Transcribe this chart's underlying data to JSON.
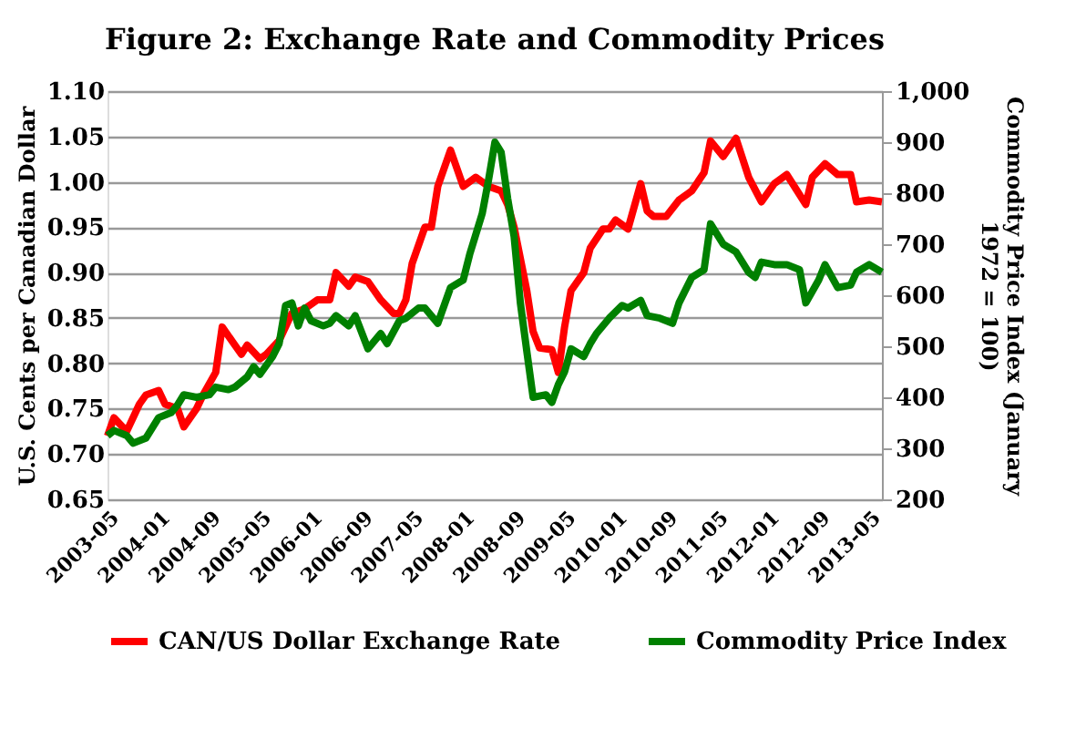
{
  "chart_data": {
    "type": "line",
    "title": "Figure 2: Exchange Rate and Commodity Prices",
    "ylabel": "U.S. Cents per Canadian Dollar",
    "y2label": "Commodity Price Index (January 1972 = 100)",
    "xlim": [
      "2003-05",
      "2013-07"
    ],
    "xticks": [
      "2003-05",
      "2004-01",
      "2004-09",
      "2005-05",
      "2006-01",
      "2006-09",
      "2007-05",
      "2008-01",
      "2008-09",
      "2009-05",
      "2010-01",
      "2010-09",
      "2011-05",
      "2012-01",
      "2012-09",
      "2013-05"
    ],
    "ylim": [
      0.65,
      1.1
    ],
    "yticks": [
      0.65,
      {
        "value": 0.7,
        "label": "0.70"
      },
      0.75,
      {
        "value": 0.8,
        "label": "0.80"
      },
      0.85,
      {
        "value": 0.9,
        "label": "0.90"
      },
      0.95,
      {
        "value": 1,
        "label": "1.00"
      },
      1.05,
      {
        "value": 1.1,
        "label": "1.10"
      }
    ],
    "y2lim": [
      200,
      1000
    ],
    "y2ticks": [
      200,
      300,
      400,
      500,
      600,
      700,
      800,
      900,
      {
        "value": 1000,
        "label": "1,000"
      }
    ],
    "grid": "y",
    "legend": "bottom",
    "line_style": "solid",
    "marker": "none",
    "series": [
      {
        "name": "CAN/US Dollar Exchange Rate",
        "color": "#ff0000",
        "x": [
          "2003-05",
          "2003-06",
          "2003-08",
          "2003-10",
          "2003-11",
          "2004-01",
          "2004-02",
          "2004-04",
          "2004-05",
          "2004-07",
          "2004-08",
          "2004-10",
          "2004-11",
          "2005-01",
          "2005-02",
          "2005-03",
          "2005-05",
          "2005-06",
          "2005-08",
          "2005-10",
          "2005-12",
          "2006-02",
          "2006-04",
          "2006-05",
          "2006-07",
          "2006-08",
          "2006-10",
          "2006-12",
          "2007-02",
          "2007-03",
          "2007-04",
          "2007-05",
          "2007-07",
          "2007-08",
          "2007-09",
          "2007-11",
          "2008-01",
          "2008-03",
          "2008-05",
          "2008-07",
          "2008-08",
          "2008-09",
          "2008-11",
          "2008-12",
          "2009-01",
          "2009-03",
          "2009-04",
          "2009-05",
          "2009-06",
          "2009-08",
          "2009-09",
          "2009-11",
          "2009-12",
          "2010-01",
          "2010-03",
          "2010-05",
          "2010-06",
          "2010-07",
          "2010-09",
          "2010-11",
          "2011-01",
          "2011-03",
          "2011-04",
          "2011-06",
          "2011-08",
          "2011-10",
          "2011-12",
          "2012-02",
          "2012-04",
          "2012-07",
          "2012-08",
          "2012-10",
          "2012-12",
          "2013-02",
          "2013-03",
          "2013-05",
          "2013-07"
        ],
        "values": [
          0.72,
          0.74,
          0.725,
          0.755,
          0.765,
          0.77,
          0.755,
          0.75,
          0.73,
          0.75,
          0.765,
          0.79,
          0.84,
          0.82,
          0.81,
          0.82,
          0.805,
          0.81,
          0.825,
          0.855,
          0.86,
          0.87,
          0.87,
          0.9,
          0.885,
          0.895,
          0.89,
          0.87,
          0.855,
          0.855,
          0.87,
          0.91,
          0.95,
          0.95,
          0.995,
          1.035,
          0.995,
          1.005,
          0.995,
          0.99,
          0.975,
          0.95,
          0.88,
          0.835,
          0.817,
          0.815,
          0.79,
          0.84,
          0.88,
          0.9,
          0.927,
          0.948,
          0.948,
          0.958,
          0.948,
          0.998,
          0.968,
          0.962,
          0.962,
          0.98,
          0.99,
          1.01,
          1.045,
          1.028,
          1.048,
          1.005,
          0.978,
          0.998,
          1.008,
          0.975,
          1.005,
          1.02,
          1.008,
          1.008,
          0.978,
          0.98,
          0.978
        ]
      },
      {
        "name": "Commodity Price Index",
        "color": "#008000",
        "axis": "y2",
        "x": [
          "2003-05",
          "2003-06",
          "2003-08",
          "2003-09",
          "2003-11",
          "2004-01",
          "2004-03",
          "2004-04",
          "2004-05",
          "2004-07",
          "2004-09",
          "2004-10",
          "2004-12",
          "2005-01",
          "2005-03",
          "2005-04",
          "2005-05",
          "2005-07",
          "2005-08",
          "2005-09",
          "2005-10",
          "2005-11",
          "2005-12",
          "2006-01",
          "2006-03",
          "2006-04",
          "2006-05",
          "2006-07",
          "2006-08",
          "2006-10",
          "2006-12",
          "2007-01",
          "2007-03",
          "2007-04",
          "2007-06",
          "2007-07",
          "2007-09",
          "2007-11",
          "2008-01",
          "2008-02",
          "2008-04",
          "2008-05",
          "2008-06",
          "2008-07",
          "2008-08",
          "2008-09",
          "2008-10",
          "2008-11",
          "2008-12",
          "2009-02",
          "2009-03",
          "2009-04",
          "2009-05",
          "2009-06",
          "2009-08",
          "2009-09",
          "2009-10",
          "2009-12",
          "2010-02",
          "2010-03",
          "2010-05",
          "2010-06",
          "2010-08",
          "2010-10",
          "2010-11",
          "2011-01",
          "2011-03",
          "2011-04",
          "2011-06",
          "2011-08",
          "2011-10",
          "2011-11",
          "2011-12",
          "2012-02",
          "2012-04",
          "2012-06",
          "2012-07",
          "2012-09",
          "2012-10",
          "2012-12",
          "2013-02",
          "2013-03",
          "2013-05",
          "2013-07"
        ],
        "values": [
          325,
          335,
          325,
          310,
          320,
          360,
          370,
          385,
          405,
          400,
          405,
          420,
          415,
          420,
          440,
          460,
          445,
          480,
          505,
          580,
          585,
          540,
          575,
          550,
          540,
          545,
          560,
          540,
          560,
          495,
          525,
          505,
          550,
          555,
          575,
          575,
          545,
          615,
          630,
          680,
          760,
          825,
          900,
          880,
          790,
          715,
          585,
          490,
          400,
          405,
          390,
          425,
          450,
          495,
          480,
          505,
          525,
          555,
          580,
          575,
          590,
          560,
          555,
          545,
          585,
          635,
          650,
          740,
          700,
          685,
          645,
          635,
          665,
          660,
          660,
          650,
          585,
          630,
          660,
          615,
          620,
          645,
          660,
          645
        ]
      }
    ]
  }
}
